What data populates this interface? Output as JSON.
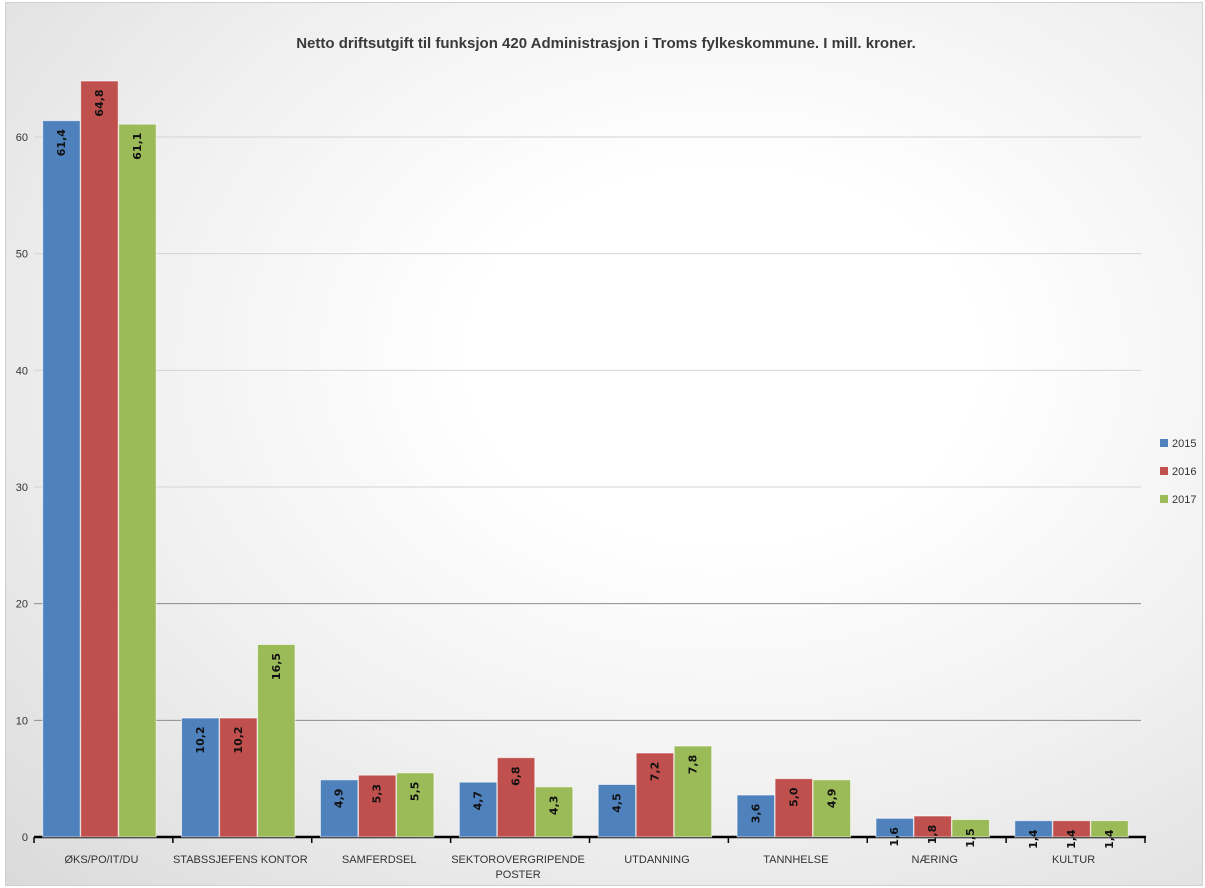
{
  "chart_data": {
    "type": "bar",
    "title": "Netto driftsutgift til funksjon 420 Administrasjon i Troms fylkeskommune. I mill. kroner.",
    "categories": [
      "ØKS/PO/IT/DU",
      "STABSSJEFENS KONTOR",
      "SAMFERDSEL",
      "SEKTOROVERGRIPENDE POSTER",
      "UTDANNING",
      "TANNHELSE",
      "NÆRING",
      "KULTUR"
    ],
    "series": [
      {
        "name": "2015",
        "color": "#4f81bd",
        "values": [
          61.4,
          10.2,
          4.9,
          4.7,
          4.5,
          3.6,
          1.6,
          1.4
        ],
        "labels": [
          "61,4",
          "10,2",
          "4,9",
          "4,7",
          "4,5",
          "3,6",
          "1,6",
          "1,4"
        ]
      },
      {
        "name": "2016",
        "color": "#c0504d",
        "values": [
          64.8,
          10.2,
          5.3,
          6.8,
          7.2,
          5.0,
          1.8,
          1.4
        ],
        "labels": [
          "64,8",
          "10,2",
          "5,3",
          "6,8",
          "7,2",
          "5,0",
          "1,8",
          "1,4"
        ]
      },
      {
        "name": "2017",
        "color": "#9bbb59",
        "values": [
          61.1,
          16.5,
          5.5,
          4.3,
          7.8,
          4.9,
          1.5,
          1.4
        ],
        "labels": [
          "61,1",
          "16,5",
          "5,5",
          "4,3",
          "7,8",
          "4,9",
          "1,5",
          "1,4"
        ]
      }
    ],
    "yticks": [
      "0",
      "10",
      "20",
      "30",
      "40",
      "50",
      "60"
    ],
    "ylim": [
      0,
      70
    ],
    "grid": true,
    "legend": "right"
  }
}
